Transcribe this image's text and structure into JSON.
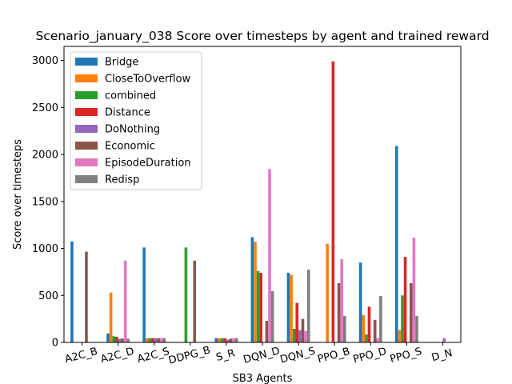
{
  "chart_data": {
    "type": "bar",
    "title": "Scenario_january_038 Score over timesteps by agent and trained reward",
    "xlabel": "SB3 Agents",
    "ylabel": "Score over timesteps",
    "ylim": [
      0,
      3150
    ],
    "yticks": [
      0,
      500,
      1000,
      1500,
      2000,
      2500,
      3000
    ],
    "grid": false,
    "legend_position": "top-left",
    "categories": [
      "A2C_B",
      "A2C_D",
      "A2C_S",
      "DDPG_B",
      "S_R",
      "DQN_D",
      "DQN_S",
      "PPO_B",
      "PPO_D",
      "PPO_S",
      "D_N"
    ],
    "series": [
      {
        "name": "Bridge",
        "color": "#1f77b4",
        "values": [
          1075,
          95,
          1010,
          0,
          45,
          1120,
          740,
          0,
          850,
          2090,
          0
        ]
      },
      {
        "name": "CloseToOverflow",
        "color": "#ff7f0e",
        "values": [
          0,
          530,
          45,
          0,
          45,
          1070,
          720,
          1050,
          290,
          130,
          0
        ]
      },
      {
        "name": "combined",
        "color": "#2ca02c",
        "values": [
          0,
          65,
          45,
          1010,
          45,
          760,
          145,
          0,
          85,
          500,
          0
        ]
      },
      {
        "name": "Distance",
        "color": "#d62728",
        "values": [
          0,
          60,
          45,
          0,
          45,
          740,
          420,
          2990,
          380,
          910,
          0
        ]
      },
      {
        "name": "DoNothing",
        "color": "#9467bd",
        "values": [
          0,
          40,
          45,
          0,
          30,
          0,
          130,
          0,
          0,
          0,
          45
        ]
      },
      {
        "name": "Economic",
        "color": "#8c564b",
        "values": [
          965,
          40,
          45,
          870,
          40,
          230,
          250,
          630,
          240,
          630,
          0
        ]
      },
      {
        "name": "EpisodeDuration",
        "color": "#e377c2",
        "values": [
          0,
          870,
          45,
          0,
          45,
          1845,
          120,
          885,
          45,
          1115,
          0
        ]
      },
      {
        "name": "Redisp",
        "color": "#7f7f7f",
        "values": [
          0,
          40,
          45,
          0,
          45,
          545,
          775,
          280,
          495,
          280,
          0
        ]
      }
    ]
  }
}
